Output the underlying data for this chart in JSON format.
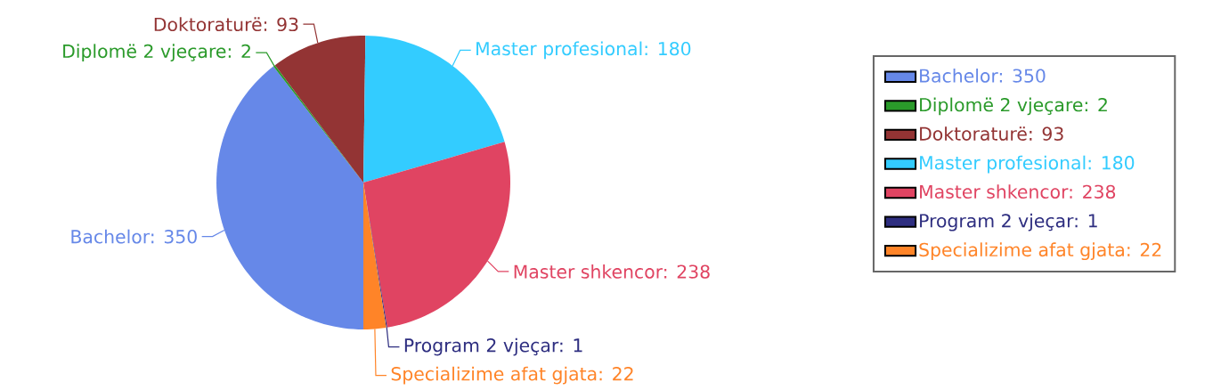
{
  "chart_data": {
    "type": "pie",
    "categories": [
      "Bachelor: 350",
      "Diplomë 2 vjeçare: 2",
      "Doktoraturë: 93",
      "Master profesional: 180",
      "Master shkencor: 238",
      "Program 2 vjeçar: 1",
      "Specializime afat gjata: 22"
    ],
    "values": [
      350,
      2,
      93,
      180,
      238,
      1,
      22
    ],
    "colors": [
      "#6688e8",
      "#2a9a2a",
      "#933434",
      "#33ccff",
      "#e04462",
      "#2e2e80",
      "#ff8428"
    ],
    "legend": "right"
  }
}
